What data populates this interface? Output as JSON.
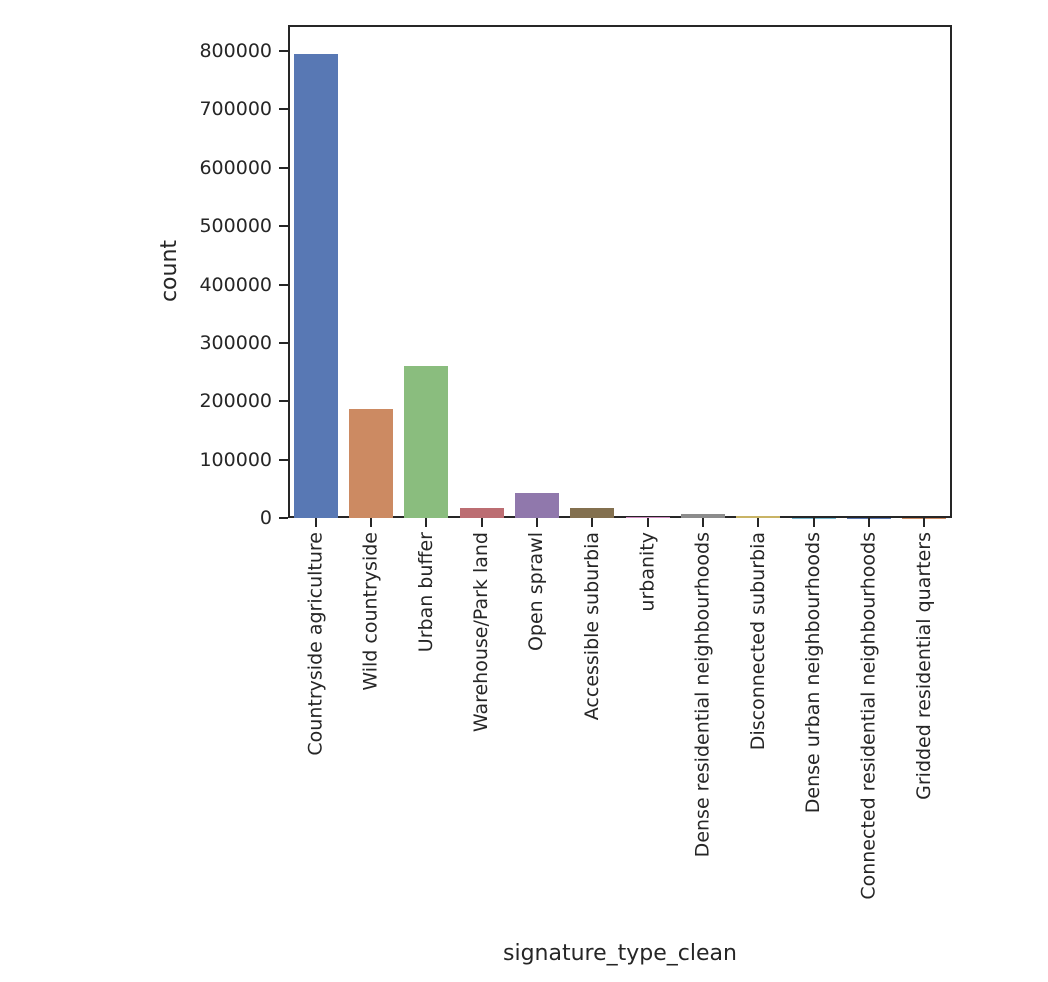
{
  "figure": {
    "background": "#ffffff",
    "text_color": "#262626",
    "spine_color": "#262626"
  },
  "chart_data": {
    "type": "bar",
    "title": "",
    "xlabel": "signature_type_clean",
    "ylabel": "count",
    "grid": false,
    "legend": "none",
    "x_tick_rotation": 90,
    "ylim": [
      0,
      840000
    ],
    "yticks": [
      0,
      100000,
      200000,
      300000,
      400000,
      500000,
      600000,
      700000,
      800000
    ],
    "ytick_labels": [
      "0",
      "100000",
      "200000",
      "300000",
      "400000",
      "500000",
      "600000",
      "700000",
      "800000"
    ],
    "categories": [
      "Countryside agriculture",
      "Wild countryside",
      "Urban buffer",
      "Warehouse/Park land",
      "Open sprawl",
      "Accessible suburbia",
      "urbanity",
      "Dense residential neighbourhoods",
      "Disconnected suburbia",
      "Dense urban neighbourhoods",
      "Connected residential neighbourhoods",
      "Gridded residential quarters"
    ],
    "values": [
      795000,
      186000,
      260000,
      17000,
      42000,
      16500,
      900,
      6500,
      3500,
      600,
      400,
      250
    ],
    "bar_colors": [
      "#5878b4",
      "#cc8a62",
      "#8abd7e",
      "#bc6d72",
      "#9078ac",
      "#83704f",
      "#d08bc2",
      "#8c8c8c",
      "#c9b465",
      "#77b8d0",
      "#5878b4",
      "#cc8a62"
    ]
  }
}
